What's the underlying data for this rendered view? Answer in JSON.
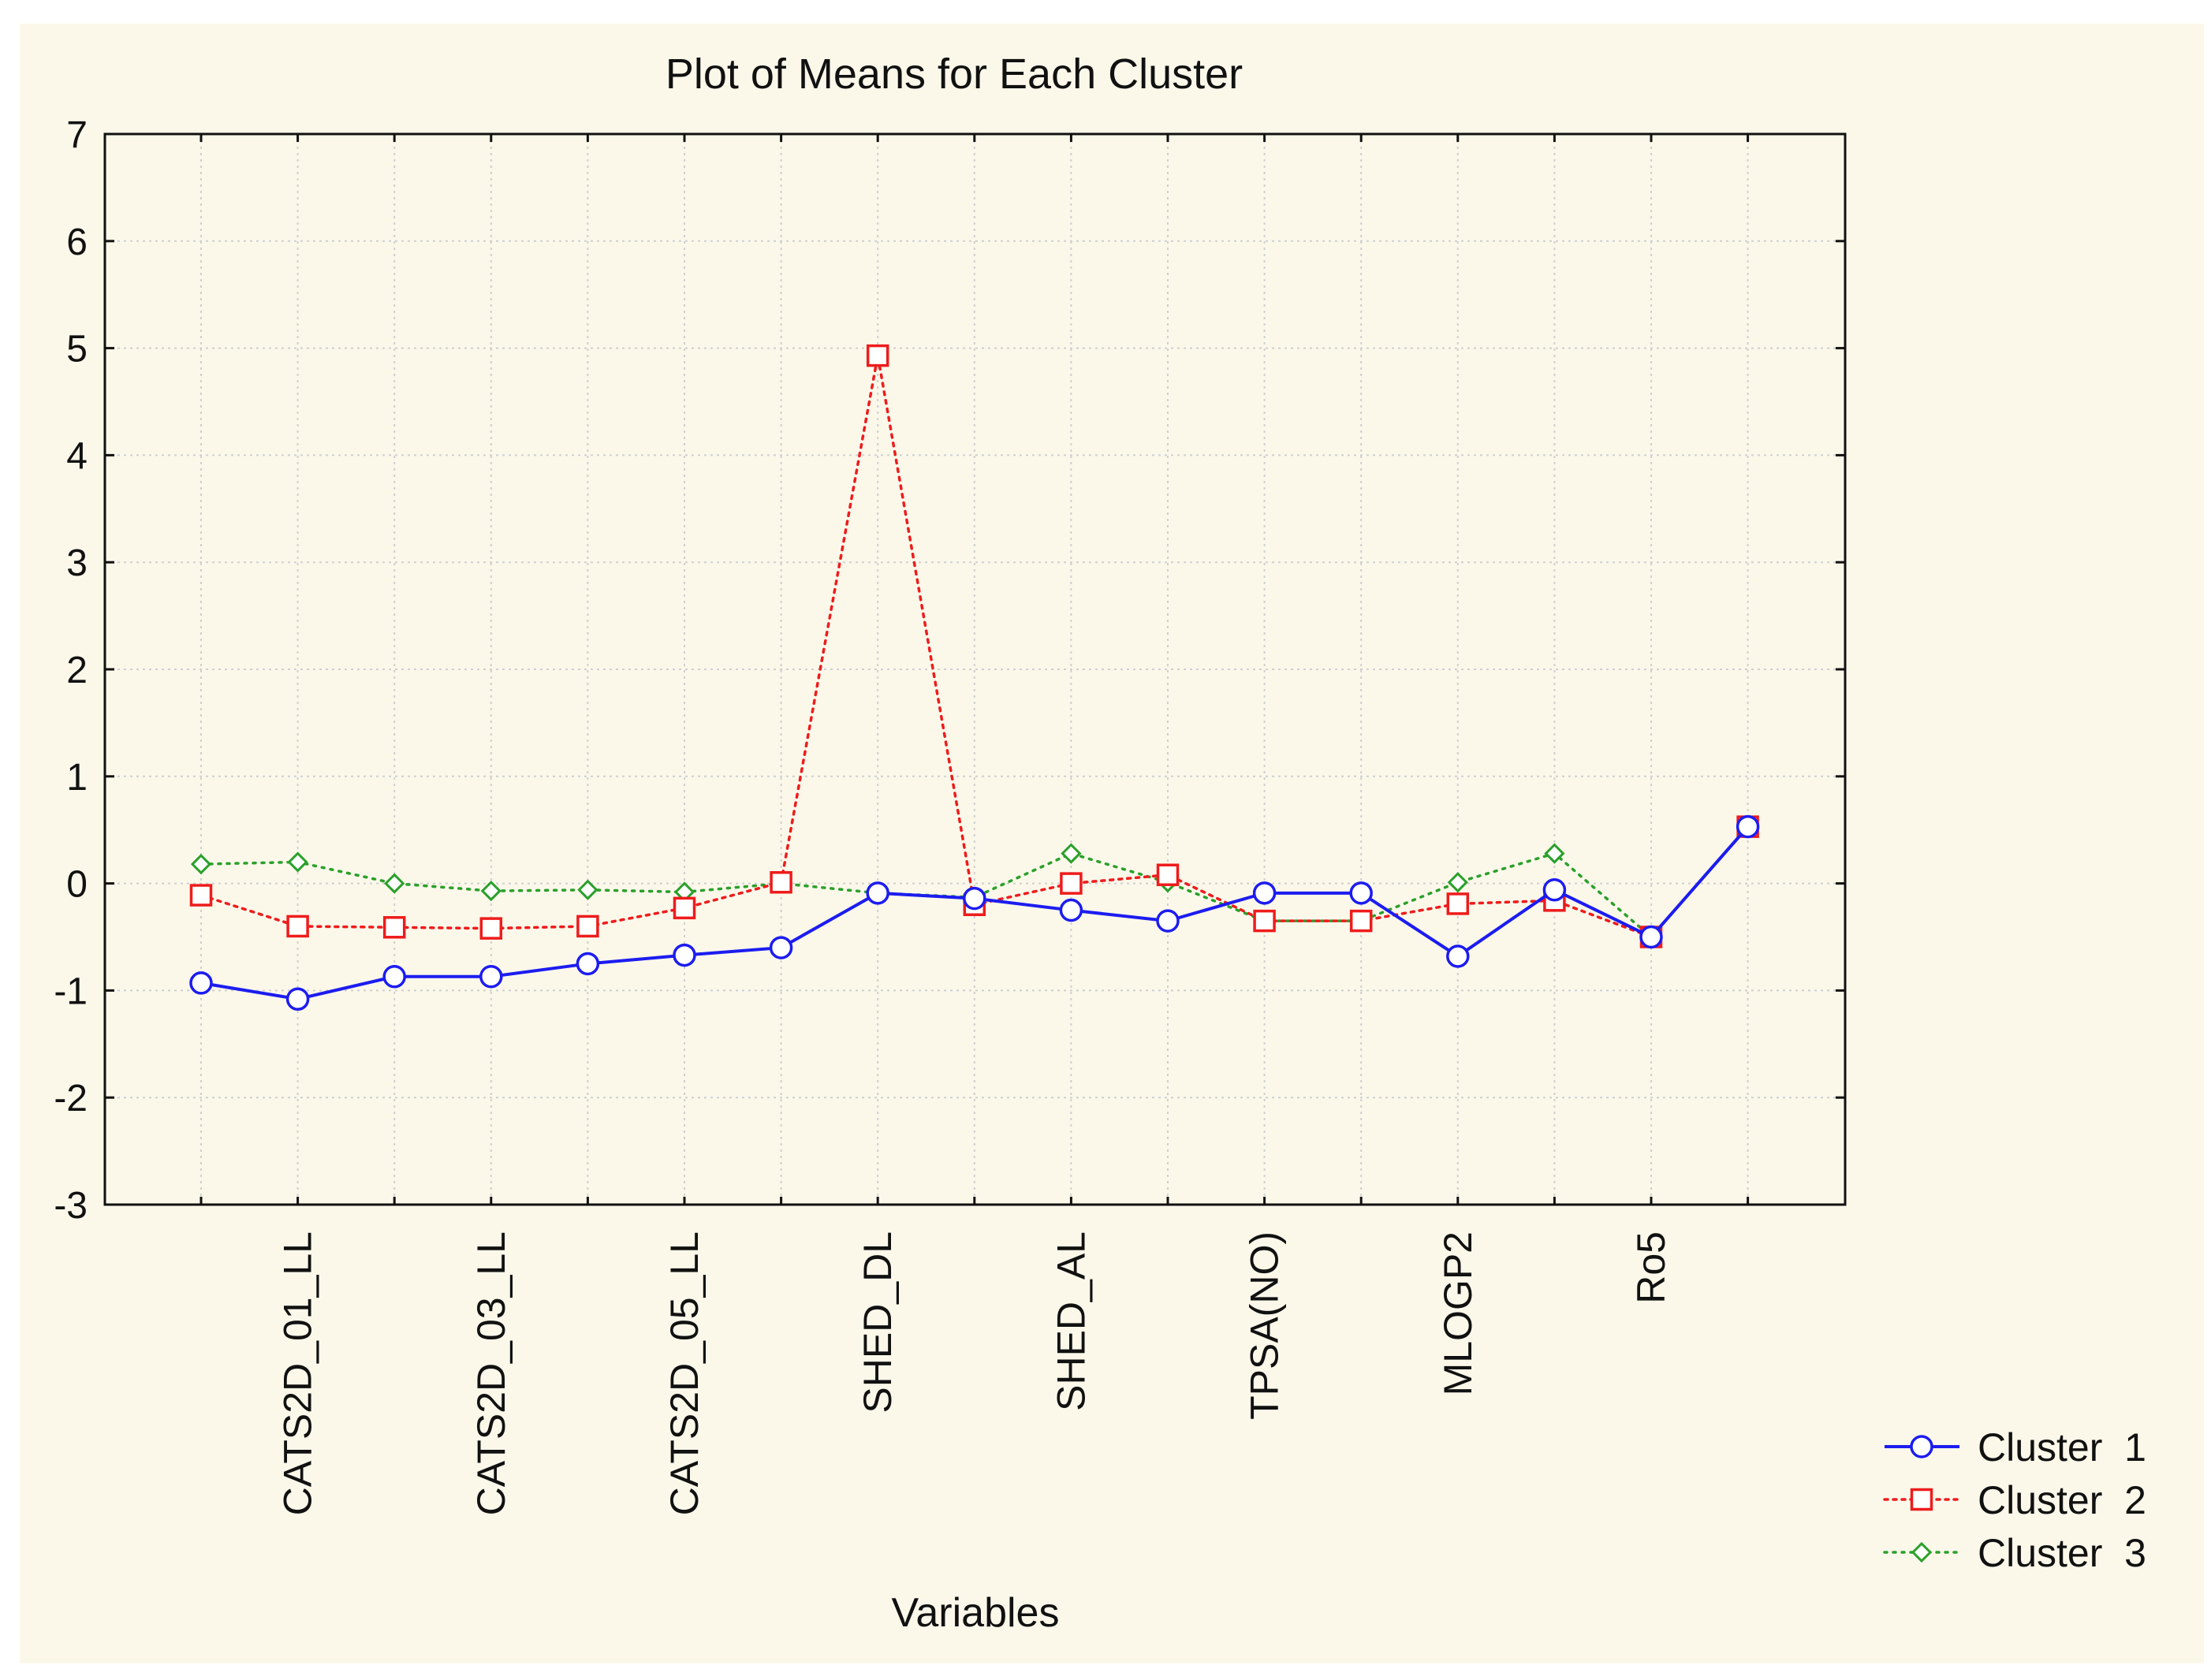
{
  "chart_data": {
    "type": "line",
    "title": "Plot of Means for Each Cluster",
    "xlabel": "Variables",
    "ylabel": "",
    "ylim": [
      -3,
      7
    ],
    "yticks": [
      "7",
      "6",
      "5",
      "4",
      "3",
      "2",
      "1",
      "0",
      "-1",
      "-2",
      "-3"
    ],
    "ytick_values": [
      7,
      6,
      5,
      4,
      3,
      2,
      1,
      0,
      -1,
      -2,
      -3
    ],
    "x_tick_labels": [
      "CATS2D_01_LL",
      "CATS2D_03_LL",
      "CATS2D_05_LL",
      "SHED_DL",
      "SHED_AL",
      "TPSA(NO)",
      "MLOGP2",
      "Ro5"
    ],
    "x_tick_positions": [
      2,
      4,
      6,
      8,
      10,
      12,
      14,
      16
    ],
    "x_count": 17,
    "grid": true,
    "legend_position": "bottom-right",
    "series": [
      {
        "name": "Cluster  1",
        "color": "#1c1cf0",
        "marker": "circle",
        "dash": "solid",
        "values": [
          -0.93,
          -1.08,
          -0.87,
          -0.87,
          -0.75,
          -0.67,
          -0.6,
          -0.09,
          -0.14,
          -0.25,
          -0.35,
          -0.09,
          -0.09,
          -0.68,
          -0.06,
          -0.5,
          0.53
        ]
      },
      {
        "name": "Cluster  2",
        "color": "#ee1c1c",
        "marker": "square",
        "dash": "dotted",
        "values": [
          -0.11,
          -0.4,
          -0.41,
          -0.42,
          -0.4,
          -0.23,
          0.01,
          4.93,
          -0.2,
          0.0,
          0.08,
          -0.35,
          -0.35,
          -0.19,
          -0.16,
          -0.5,
          0.53
        ]
      },
      {
        "name": "Cluster  3",
        "color": "#2aa02a",
        "marker": "diamond",
        "dash": "dotted",
        "values": [
          0.18,
          0.2,
          0.0,
          -0.07,
          -0.06,
          -0.08,
          0.0,
          -0.09,
          -0.13,
          0.28,
          0.01,
          -0.35,
          -0.35,
          0.01,
          0.28,
          -0.5,
          0.53
        ]
      }
    ]
  }
}
